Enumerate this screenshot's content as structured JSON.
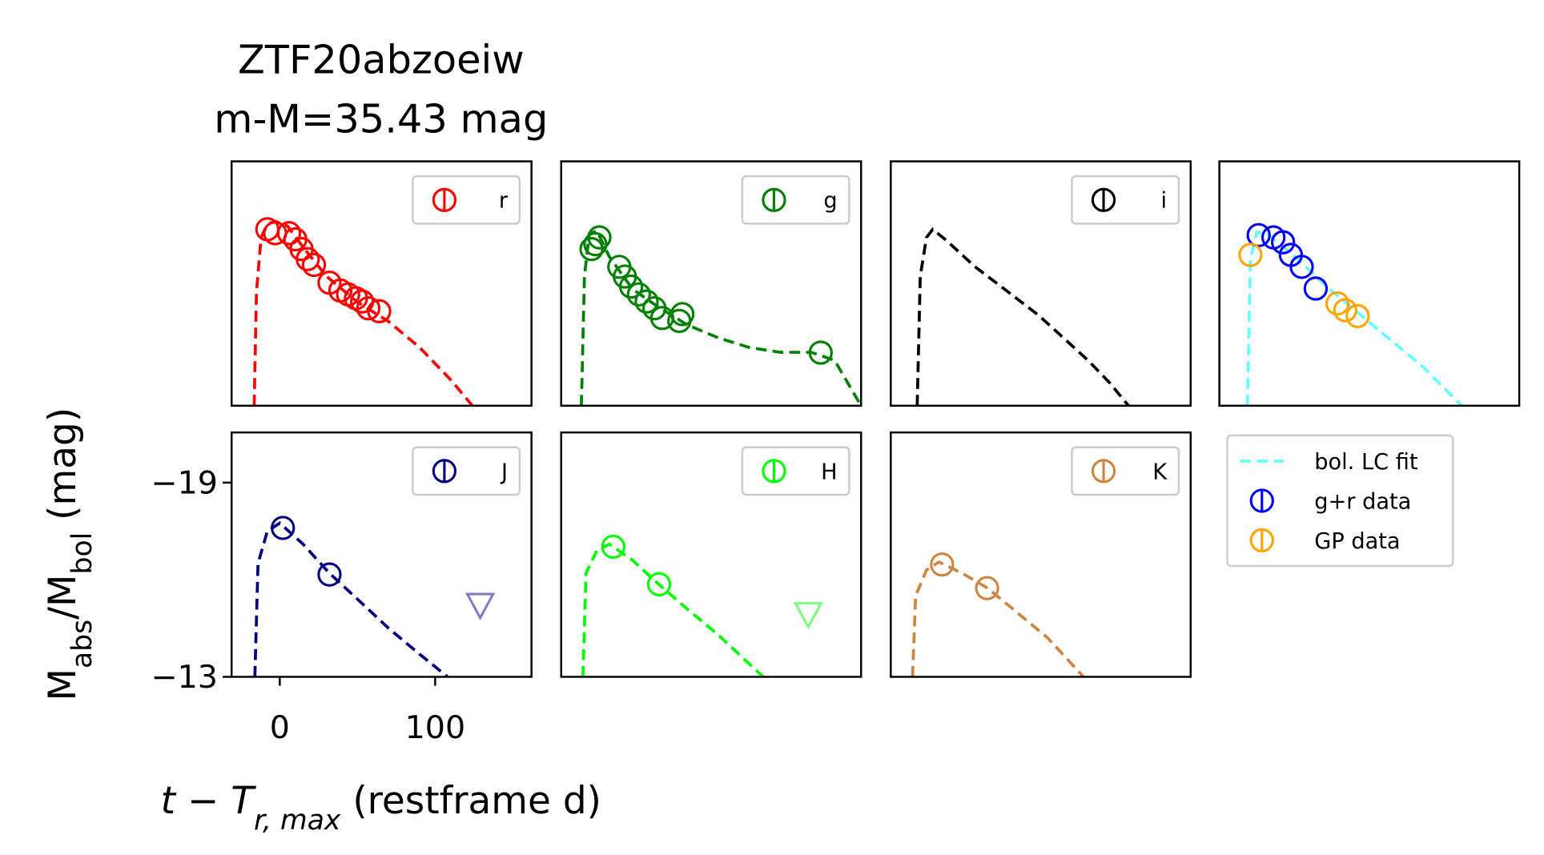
{
  "figure": {
    "title": [
      "ZTF20abzoeiw",
      "m-M=35.43 mag"
    ],
    "ylabel": [
      "M",
      "abs",
      "/M",
      "bol",
      " (mag)"
    ],
    "xlabel": [
      "t − T",
      "r, max",
      " (restframe d)"
    ]
  },
  "chart_data": [
    {
      "type": "line",
      "xlim": [
        -31,
        162
      ],
      "ylim": [
        -13,
        -20.55
      ],
      "legend": "upper right",
      "series": [
        {
          "name": "r",
          "color": "red",
          "style": "data",
          "x": [
            -8,
            -3,
            6,
            10,
            14,
            18,
            22,
            32,
            39,
            44,
            49,
            53,
            57,
            64
          ],
          "values": [
            -18.45,
            -18.33,
            -18.33,
            -18.14,
            -17.84,
            -17.53,
            -17.35,
            -16.8,
            -16.56,
            -16.44,
            -16.32,
            -16.22,
            -16.01,
            -15.92
          ]
        },
        {
          "color": "red",
          "style": "fit",
          "x": [
            -16.5,
            -15,
            -12,
            -8,
            -3,
            5,
            15,
            30,
            50,
            70,
            90,
            110,
            124
          ],
          "values": [
            -13,
            -16.5,
            -18.2,
            -18.6,
            -18.7,
            -18.55,
            -17.9,
            -17.0,
            -16.2,
            -15.6,
            -14.8,
            -13.8,
            -13.0
          ]
        }
      ]
    },
    {
      "type": "line",
      "xlim": [
        -31,
        162
      ],
      "ylim": [
        -13,
        -20.55
      ],
      "legend": "upper right",
      "series": [
        {
          "name": "g",
          "color": "green",
          "style": "data",
          "x": [
            -11.5,
            -9,
            -6.4,
            6.4,
            10,
            14,
            19,
            24,
            29,
            34,
            45,
            47,
            136
          ],
          "values": [
            -17.84,
            -17.99,
            -18.2,
            -17.29,
            -16.99,
            -16.68,
            -16.44,
            -16.22,
            -16.01,
            -15.71,
            -15.62,
            -15.83,
            -14.64
          ]
        },
        {
          "color": "green",
          "style": "fit",
          "x": [
            -18,
            -16,
            -13,
            -8,
            0,
            15,
            30,
            50,
            70,
            90,
            110,
            130,
            145,
            162
          ],
          "values": [
            -13,
            -17,
            -18.3,
            -18.4,
            -17.6,
            -16.6,
            -16.1,
            -15.5,
            -15.1,
            -14.8,
            -14.65,
            -14.65,
            -14.4,
            -13.0
          ]
        }
      ]
    },
    {
      "type": "line",
      "xlim": [
        -31,
        162
      ],
      "ylim": [
        -13,
        -20.55
      ],
      "legend": "upper right",
      "series": [
        {
          "name": "i",
          "color": "black",
          "style": "data",
          "x": [],
          "values": []
        },
        {
          "color": "black",
          "style": "fit",
          "x": [
            -14,
            -12,
            -8,
            -4,
            5,
            23,
            45,
            64,
            80,
            96,
            110,
            122
          ],
          "values": [
            -13,
            -17,
            -18.2,
            -18.45,
            -18.1,
            -17.3,
            -16.5,
            -15.8,
            -15.1,
            -14.4,
            -13.7,
            -13.0
          ]
        }
      ]
    },
    {
      "type": "line",
      "xlim": [
        -31,
        162
      ],
      "ylim": [
        -13,
        -20.55
      ],
      "legend": "outside",
      "series": [
        {
          "name": "bol. LC fit",
          "color": "cyan",
          "alpha": 0.6,
          "style": "fit",
          "x": [
            -13,
            -11,
            -7,
            0,
            20,
            40,
            60,
            80,
            100,
            125
          ],
          "values": [
            -13,
            -17.5,
            -18.36,
            -18.3,
            -17.5,
            -16.6,
            -15.8,
            -15.0,
            -14.2,
            -13.0
          ]
        },
        {
          "name": "g+r data",
          "color": "blue",
          "style": "data",
          "x": [
            -5.7,
            3.8,
            10,
            15,
            22,
            31
          ],
          "values": [
            -18.27,
            -18.2,
            -18.05,
            -17.66,
            -17.29,
            -16.62
          ]
        },
        {
          "name": "GP data",
          "color": "orange",
          "style": "data",
          "x": [
            -11,
            45,
            50,
            58
          ],
          "values": [
            -17.66,
            -16.16,
            -15.95,
            -15.77
          ]
        }
      ]
    },
    {
      "type": "line",
      "xlim": [
        -31,
        162
      ],
      "ylim": [
        -13,
        -20.55
      ],
      "legend": "upper right",
      "xticks": [
        0,
        100
      ],
      "yticks": [
        {
          "value": -19,
          "label": "−19"
        },
        {
          "value": -13,
          "label": "−13"
        }
      ],
      "series": [
        {
          "name": "J",
          "color": "navy",
          "style": "data",
          "x": [
            2,
            32
          ],
          "values": [
            -17.6,
            -16.16
          ]
        },
        {
          "color": "navy",
          "style": "fit",
          "x": [
            -16,
            -14,
            -8,
            0,
            15,
            32,
            50,
            70,
            90,
            108
          ],
          "values": [
            -13,
            -16.5,
            -17.5,
            -17.75,
            -17.1,
            -16.2,
            -15.4,
            -14.5,
            -13.7,
            -13.0
          ]
        },
        {
          "color": "navy",
          "alpha": 0.5,
          "style": "upper-limit",
          "x": [
            129
          ],
          "values": [
            -15.19
          ]
        }
      ]
    },
    {
      "type": "line",
      "xlim": [
        -31,
        162
      ],
      "ylim": [
        -13,
        -20.55
      ],
      "legend": "upper right",
      "series": [
        {
          "name": "H",
          "color": "lime",
          "style": "data",
          "x": [
            2.5,
            32
          ],
          "values": [
            -17.02,
            -15.86
          ]
        },
        {
          "color": "lime",
          "style": "fit",
          "x": [
            -17,
            -15,
            -8,
            0,
            15,
            32,
            50,
            70,
            99
          ],
          "values": [
            -13,
            -16.2,
            -16.9,
            -17.1,
            -16.6,
            -15.85,
            -15.1,
            -14.3,
            -13.0
          ]
        },
        {
          "color": "lime",
          "alpha": 0.5,
          "style": "upper-limit",
          "x": [
            128
          ],
          "values": [
            -14.91
          ]
        }
      ]
    },
    {
      "type": "line",
      "xlim": [
        -31,
        162
      ],
      "ylim": [
        -13,
        -20.55
      ],
      "legend": "upper right",
      "series": [
        {
          "name": "K",
          "color": "peru",
          "style": "data",
          "x": [
            2,
            31
          ],
          "values": [
            -16.47,
            -15.74
          ]
        },
        {
          "color": "peru",
          "style": "fit",
          "x": [
            -17,
            -15,
            -8,
            0,
            15,
            31,
            50,
            70,
            93
          ],
          "values": [
            -13,
            -15.5,
            -16.3,
            -16.55,
            -16.2,
            -15.75,
            -15.0,
            -14.2,
            -13.0
          ]
        }
      ]
    }
  ]
}
